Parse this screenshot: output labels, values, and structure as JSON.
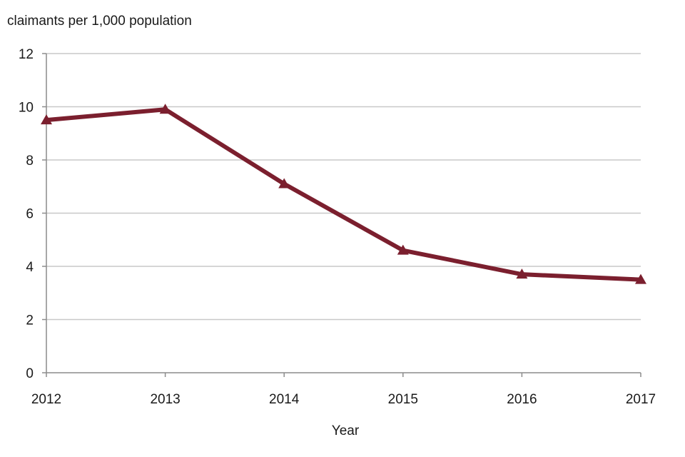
{
  "chart_data": {
    "type": "line",
    "title": "",
    "ylabel": "claimants  per 1,000 population",
    "xlabel": "Year",
    "categories": [
      "2012",
      "2013",
      "2014",
      "2015",
      "2016",
      "2017"
    ],
    "series": [
      {
        "values": [
          9.5,
          9.9,
          7.1,
          4.6,
          3.7,
          3.5
        ],
        "color": "#7b1f2e",
        "marker": "triangle"
      }
    ],
    "ylim": [
      0,
      12
    ],
    "yticks": [
      0,
      2,
      4,
      6,
      8,
      10,
      12
    ],
    "grid": "horizontal",
    "legend": "none"
  }
}
